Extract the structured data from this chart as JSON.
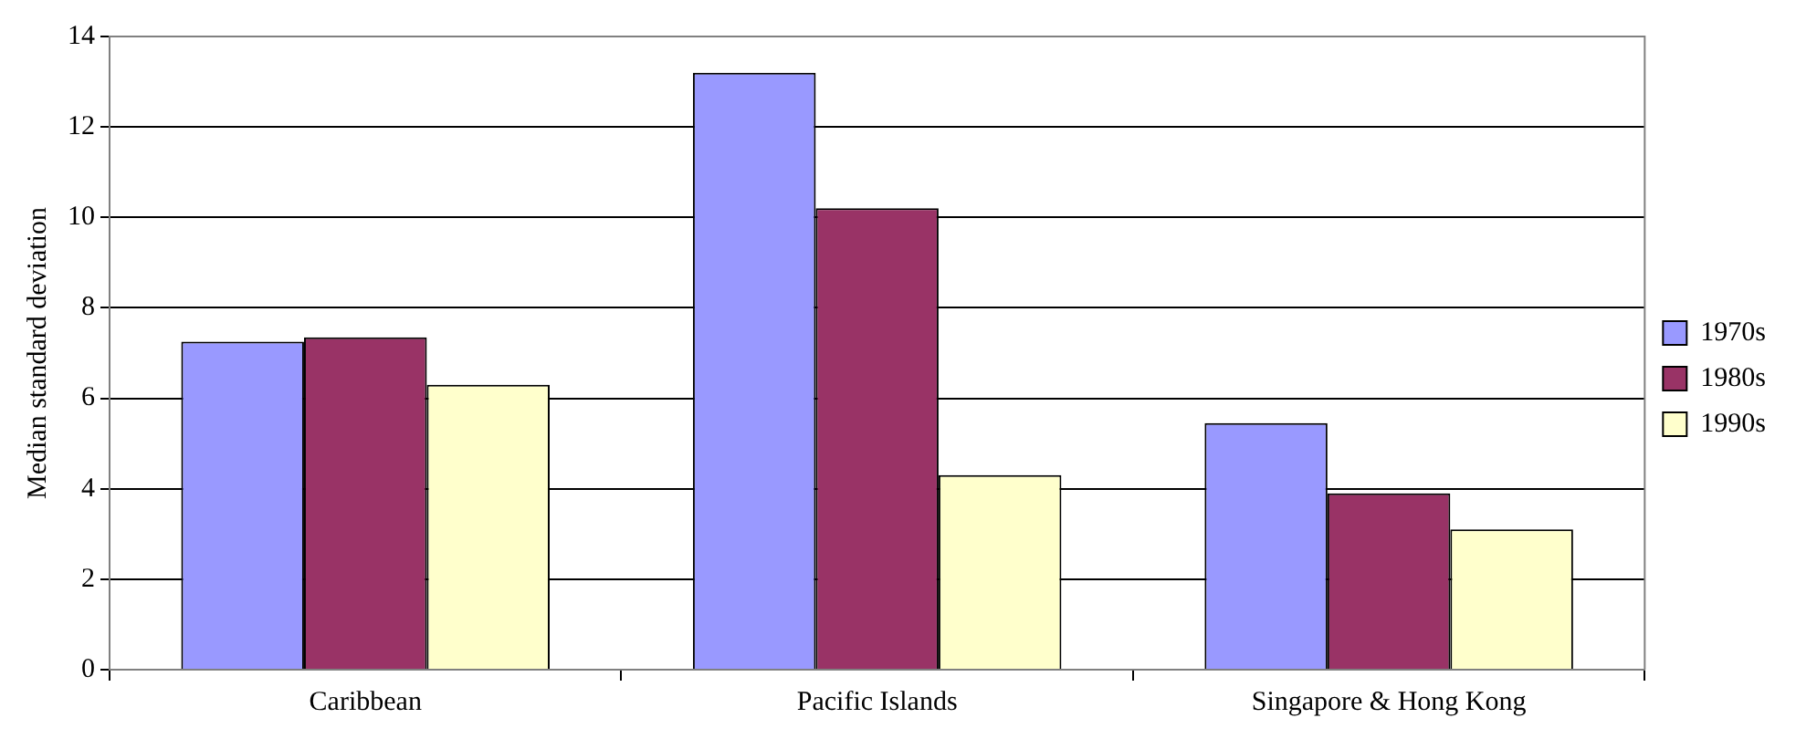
{
  "chart_data": {
    "type": "bar",
    "ylabel": "Median standard deviation",
    "categories": [
      "Caribbean",
      "Pacific Islands",
      "Singapore & Hong Kong"
    ],
    "series": [
      {
        "name": "1970s",
        "color": "#9999ff",
        "values": [
          7.25,
          13.2,
          5.45
        ]
      },
      {
        "name": "1980s",
        "color": "#993366",
        "values": [
          7.35,
          10.2,
          3.9
        ]
      },
      {
        "name": "1990s",
        "color": "#ffffcc",
        "values": [
          6.3,
          4.3,
          3.1
        ]
      }
    ],
    "ylim": [
      0,
      14
    ],
    "yticks": [
      0,
      2,
      4,
      6,
      8,
      10,
      12,
      14
    ],
    "grid": "y",
    "legend": "right"
  }
}
